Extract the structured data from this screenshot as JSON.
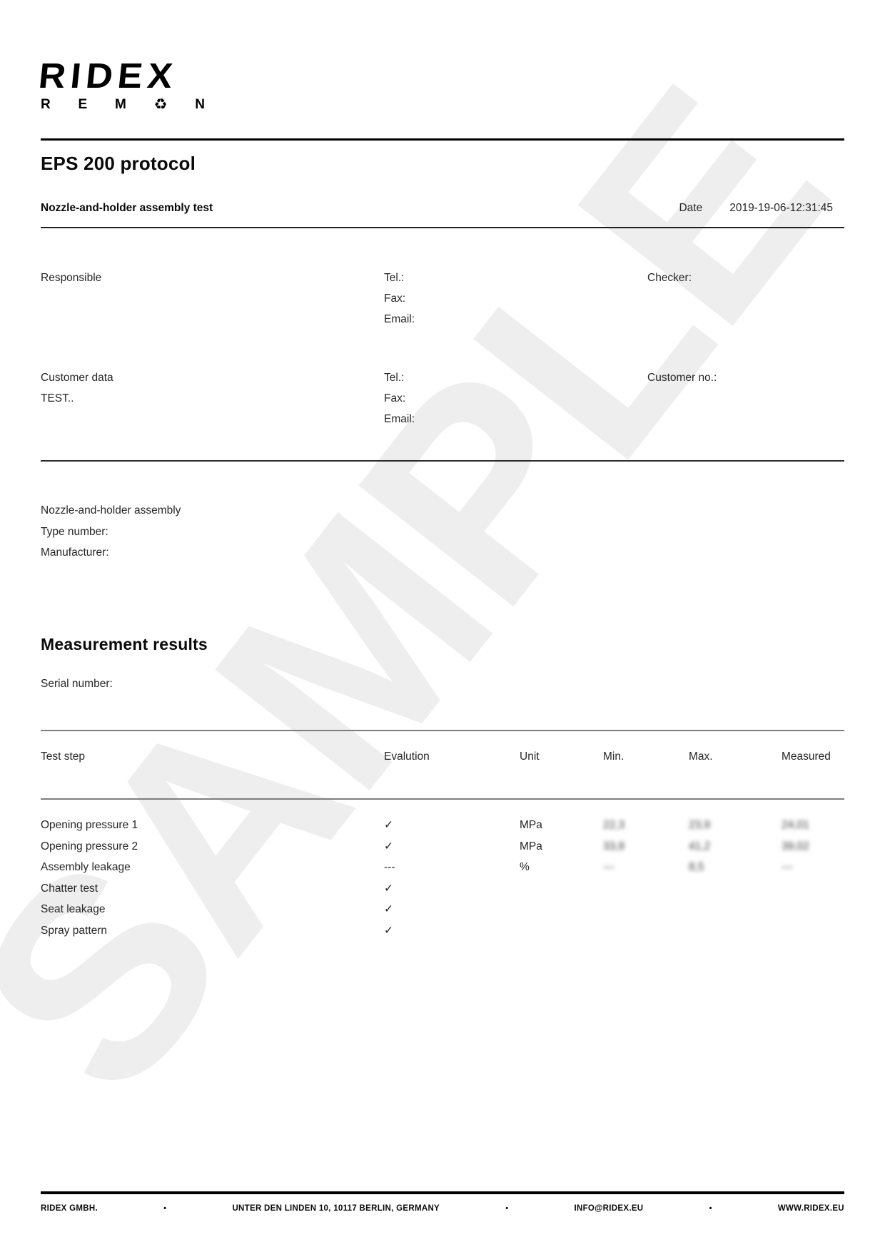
{
  "logo": {
    "primary": "RIDEX",
    "secondary": [
      "R",
      "E",
      "M",
      "♻",
      "N"
    ]
  },
  "header": {
    "title": "EPS 200 protocol",
    "subtitle": "Nozzle-and-holder assembly test",
    "date_label": "Date",
    "date_value": "2019-19-06-12:31:45"
  },
  "contacts": {
    "responsible_label": "Responsible",
    "checker_label": "Checker:",
    "tel_label": "Tel.:",
    "fax_label": "Fax:",
    "email_label": "Email:",
    "customer_data_label": "Customer data",
    "customer_name": "TEST..",
    "customer_no_label": "Customer no.:"
  },
  "assembly": {
    "title": "Nozzle-and-holder assembly",
    "type_number_label": "Type number:",
    "manufacturer_label": "Manufacturer:"
  },
  "measurement": {
    "heading": "Measurement results",
    "serial_label": "Serial number:",
    "table": {
      "headers": [
        "Test step",
        "Evalution",
        "Unit",
        "Min.",
        "Max.",
        "Measured"
      ],
      "rows": [
        {
          "step": "Opening pressure 1",
          "evaluation": "✓",
          "unit": "MPa",
          "min": "22,3",
          "max": "23,9",
          "measured": "24,01",
          "blurred": true
        },
        {
          "step": "Opening pressure 2",
          "evaluation": "✓",
          "unit": "MPa",
          "min": "33,8",
          "max": "41,2",
          "measured": "39,02",
          "blurred": true
        },
        {
          "step": "Assembly leakage",
          "evaluation": "---",
          "unit": "%",
          "min": "---",
          "max": "8,5",
          "measured": "---",
          "blurred": true
        },
        {
          "step": "Chatter test",
          "evaluation": "✓",
          "unit": "",
          "min": "",
          "max": "",
          "measured": "",
          "blurred": false
        },
        {
          "step": "Seat leakage",
          "evaluation": "✓",
          "unit": "",
          "min": "",
          "max": "",
          "measured": "",
          "blurred": false
        },
        {
          "step": "Spray pattern",
          "evaluation": "✓",
          "unit": "",
          "min": "",
          "max": "",
          "measured": "",
          "blurred": false
        }
      ]
    }
  },
  "watermark": "SAMPLE",
  "footer": {
    "separator": "•",
    "items": [
      "RIDEX GMBH.",
      "UNTER DEN LINDEN 10, 10117 BERLIN, GERMANY",
      "INFO@RIDEX.EU",
      "WWW.RIDEX.EU"
    ]
  },
  "colors": {
    "text": "#262626",
    "heading": "#0a0a0a",
    "rule_dark": "#000000",
    "rule_gray": "#7d7d7d",
    "watermark": "#eeeeee"
  }
}
